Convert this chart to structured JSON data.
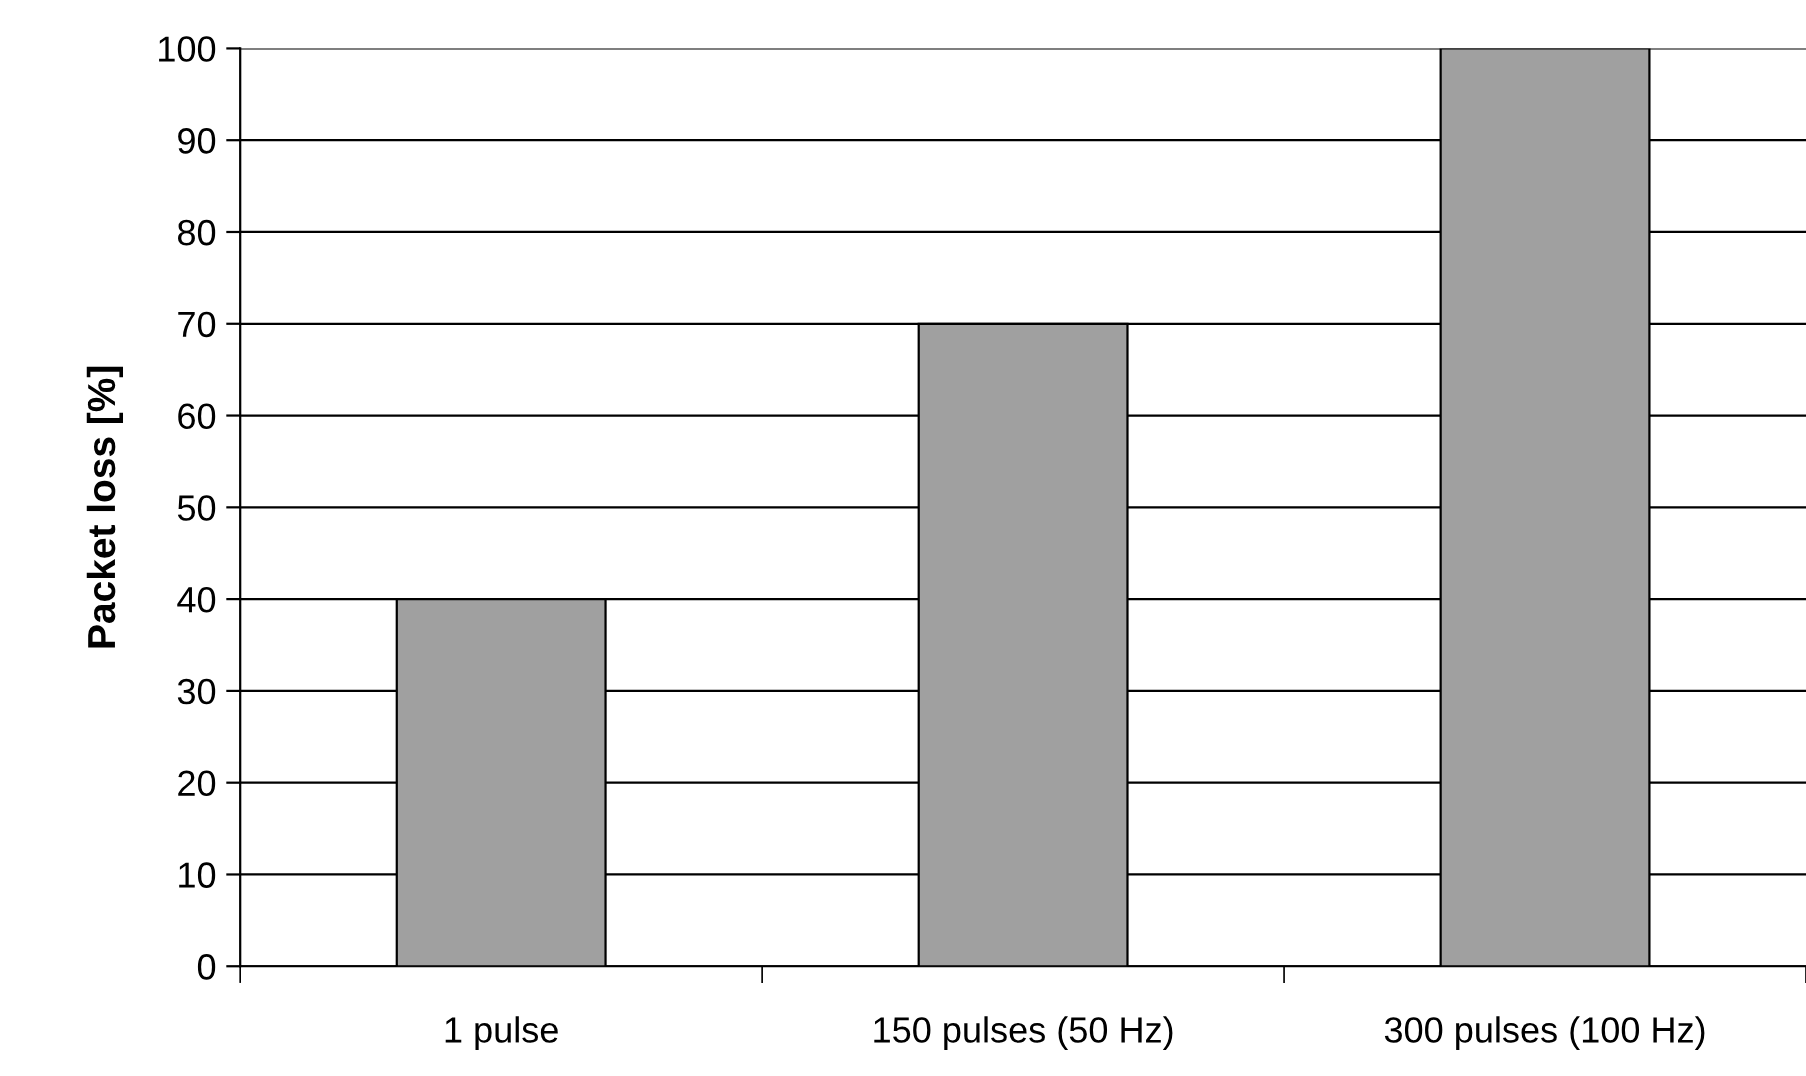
{
  "chart_data": {
    "type": "bar",
    "ylabel": "Packet loss [%]",
    "categories": [
      "1 pulse",
      "150 pulses (50 Hz)",
      "300 pulses (100 Hz)"
    ],
    "values": [
      40,
      70,
      100
    ],
    "color": "#a0a0a0",
    "ylim": [
      0,
      100
    ],
    "yticks": [
      0,
      10,
      20,
      30,
      40,
      50,
      60,
      70,
      80,
      90,
      100
    ],
    "grid": "y"
  }
}
